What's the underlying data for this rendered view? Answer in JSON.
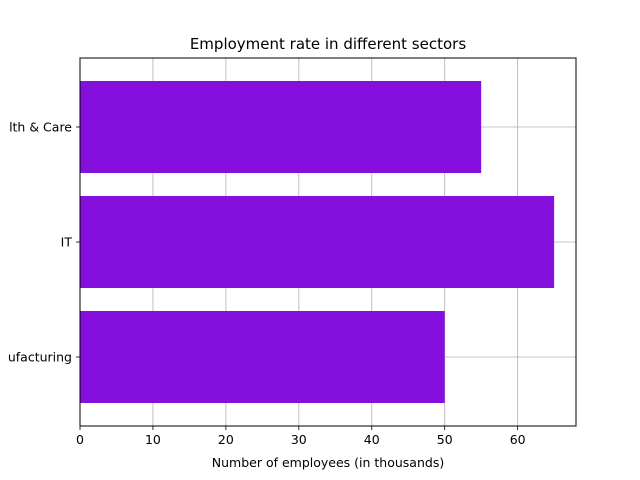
{
  "chart_data": {
    "type": "bar",
    "orientation": "horizontal",
    "title": "Employment rate in different sectors",
    "xlabel": "Number of employees (in thousands)",
    "ylabel": "",
    "categories": [
      "Manufacturing",
      "IT",
      "Health & Care"
    ],
    "category_labels_visible": [
      "ufacturing",
      "IT",
      "lth & Care"
    ],
    "values": [
      50,
      65,
      55
    ],
    "xlim": [
      0,
      68
    ],
    "xticks": [
      0,
      10,
      20,
      30,
      40,
      50,
      60
    ],
    "grid": true,
    "legend": "none",
    "colors": {
      "bar": "#8510de",
      "grid": "#b0b0b0",
      "axis": "#000000"
    }
  }
}
